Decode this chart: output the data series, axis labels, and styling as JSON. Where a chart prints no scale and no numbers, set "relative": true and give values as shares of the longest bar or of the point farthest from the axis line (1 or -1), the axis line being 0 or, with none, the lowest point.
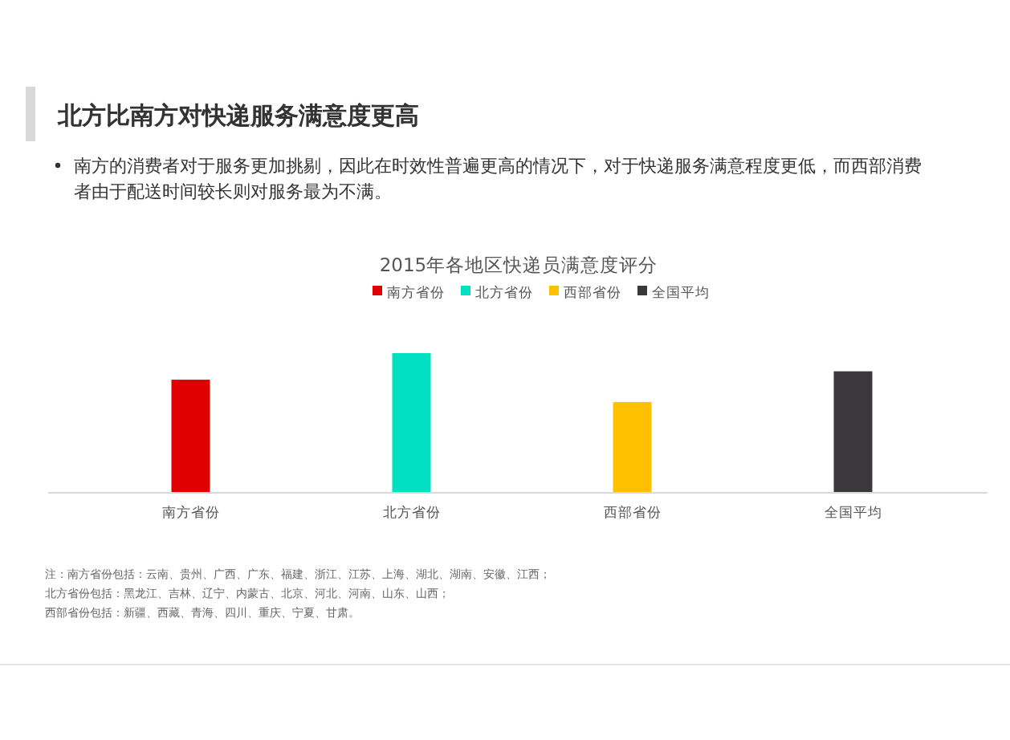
{
  "chart_data": {
    "type": "bar",
    "title": "北方比南方对快递服务满意度更高",
    "subtitle": "南方的消费者对于服务更加挑剔，因此在时效性普遍更高的情况下，对于快递服务满意程度更低，而西部消费者由于配送时间较长则对服务最为不满。",
    "xlabel": "2015年各地区快递员满意度评分",
    "categories": [
      "南方省份",
      "北方省份",
      "西部省份",
      "全国平均"
    ],
    "series": [
      {
        "name": "南方省份",
        "color": "#e00000",
        "values": [
          0.81,
          null,
          null,
          null
        ]
      },
      {
        "name": "北方省份",
        "color": "#00e0c0",
        "values": [
          null,
          1,
          null,
          null
        ]
      },
      {
        "name": "西部省份",
        "color": "#ffc000",
        "values": [
          null,
          null,
          0.65,
          null
        ]
      },
      {
        "name": "全国平均",
        "color": "#3a383a",
        "values": [
          null,
          null,
          null,
          0.87
        ]
      }
    ],
    "relative": true,
    "legend": "top",
    "annotations": [
      "注：南方省份包括：云南、贵州、广西、广东、福建、浙江、江苏、上海、湖北、湖南、安徽、江西；",
      "北方省份包括：黑龙江、吉林、辽宁、内蒙古、北京、河北、河南、山东、山西；",
      "西部省份包括：新疆、西藏、青海、四川、重庆、宁夏、甘肃。"
    ]
  }
}
